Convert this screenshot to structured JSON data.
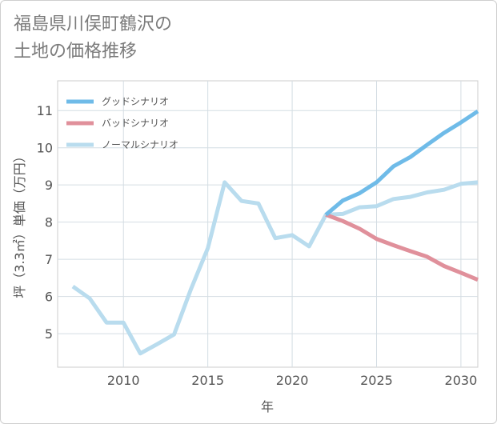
{
  "chart_data": {
    "type": "line",
    "title_lines": [
      "福島県川俣町鶴沢の",
      "土地の価格推移"
    ],
    "xlabel": "年",
    "ylabel": "坪（3.3㎡）単価（万円）",
    "xlim": [
      2006.1,
      2031
    ],
    "ylim": [
      4.1,
      11.8
    ],
    "x_ticks": [
      2010,
      2015,
      2020,
      2025,
      2030
    ],
    "y_ticks": [
      5,
      6,
      7,
      8,
      9,
      10,
      11
    ],
    "grid": true,
    "legend_position": "top-left",
    "series": [
      {
        "name": "グッドシナリオ",
        "color": "#6fbbe8",
        "x": [
          2022,
          2023,
          2024,
          2025,
          2026,
          2027,
          2028,
          2029,
          2030,
          2031
        ],
        "y": [
          8.2,
          8.58,
          8.78,
          9.07,
          9.5,
          9.75,
          10.08,
          10.4,
          10.68,
          10.98
        ]
      },
      {
        "name": "バッドシナリオ",
        "color": "#e0909b",
        "x": [
          2022,
          2023,
          2024,
          2025,
          2026,
          2027,
          2028,
          2029,
          2030,
          2031
        ],
        "y": [
          8.2,
          8.03,
          7.82,
          7.55,
          7.38,
          7.22,
          7.07,
          6.82,
          6.64,
          6.45
        ]
      },
      {
        "name": "ノーマルシナリオ",
        "color": "#b9dcee",
        "x": [
          2007,
          2008,
          2009,
          2010,
          2011,
          2012,
          2013,
          2014,
          2015,
          2016,
          2017,
          2018,
          2019,
          2020,
          2021,
          2022,
          2023,
          2024,
          2025,
          2026,
          2027,
          2028,
          2029,
          2030,
          2031
        ],
        "y": [
          6.27,
          5.95,
          5.3,
          5.3,
          4.47,
          4.72,
          4.98,
          6.2,
          7.3,
          9.07,
          8.57,
          8.5,
          7.57,
          7.65,
          7.35,
          8.2,
          8.22,
          8.4,
          8.43,
          8.62,
          8.68,
          8.8,
          8.87,
          9.03,
          9.07
        ]
      }
    ]
  }
}
